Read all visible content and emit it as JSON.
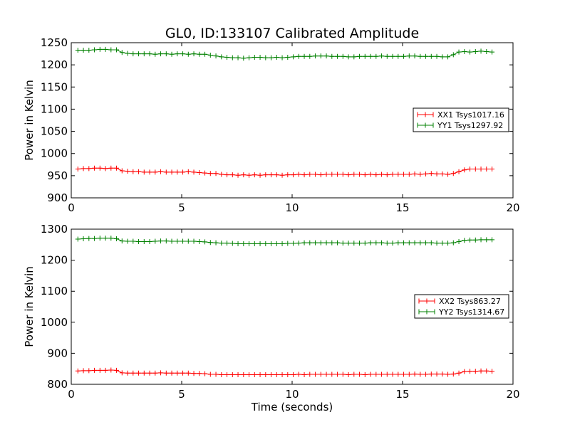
{
  "title": "GL0, ID:133107 Calibrated Amplitude",
  "colors": {
    "red": "#ff0000",
    "green": "#008000"
  },
  "chart_data": [
    {
      "type": "line",
      "title": "GL0, ID:133107 Calibrated Amplitude",
      "xlabel": "",
      "ylabel": "Power in Kelvin",
      "xlim": [
        0,
        20
      ],
      "ylim": [
        900,
        1250
      ],
      "xticks": [
        0,
        5,
        10,
        15,
        20
      ],
      "yticks": [
        900,
        950,
        1000,
        1050,
        1100,
        1150,
        1200,
        1250
      ],
      "grid": false,
      "legend_placement": "right",
      "x": [
        0.3,
        0.55,
        0.8,
        1.05,
        1.3,
        1.55,
        1.8,
        2.05,
        2.3,
        2.55,
        2.8,
        3.05,
        3.3,
        3.55,
        3.8,
        4.05,
        4.3,
        4.55,
        4.8,
        5.05,
        5.3,
        5.55,
        5.8,
        6.05,
        6.3,
        6.55,
        6.8,
        7.05,
        7.3,
        7.55,
        7.8,
        8.05,
        8.3,
        8.55,
        8.8,
        9.05,
        9.3,
        9.55,
        9.8,
        10.05,
        10.3,
        10.55,
        10.8,
        11.05,
        11.3,
        11.55,
        11.8,
        12.05,
        12.3,
        12.55,
        12.8,
        13.05,
        13.3,
        13.55,
        13.8,
        14.05,
        14.3,
        14.55,
        14.8,
        15.05,
        15.3,
        15.55,
        15.8,
        16.05,
        16.3,
        16.55,
        16.8,
        17.05,
        17.3,
        17.55,
        17.8,
        18.05,
        18.3,
        18.55,
        18.8,
        19.05
      ],
      "series": [
        {
          "name": "XX1 Tsys1017.16",
          "color": "#ff0000",
          "values": [
            965,
            966,
            966,
            967,
            967,
            966,
            967,
            967,
            961,
            960,
            959,
            959,
            958,
            958,
            958,
            959,
            958,
            958,
            958,
            958,
            959,
            958,
            957,
            956,
            955,
            955,
            953,
            952,
            952,
            951,
            952,
            951,
            952,
            951,
            952,
            952,
            952,
            951,
            952,
            952,
            953,
            952,
            953,
            953,
            952,
            953,
            953,
            953,
            953,
            952,
            953,
            953,
            952,
            953,
            952,
            953,
            952,
            953,
            953,
            953,
            953,
            954,
            953,
            954,
            955,
            954,
            954,
            953,
            955,
            959,
            963,
            965,
            965,
            965,
            965,
            965
          ]
        },
        {
          "name": "YY1 Tsys1297.92",
          "color": "#008000",
          "values": [
            1233,
            1233,
            1233,
            1234,
            1235,
            1235,
            1234,
            1234,
            1228,
            1226,
            1225,
            1225,
            1225,
            1225,
            1224,
            1225,
            1225,
            1224,
            1225,
            1225,
            1224,
            1225,
            1224,
            1224,
            1222,
            1220,
            1218,
            1217,
            1216,
            1216,
            1215,
            1216,
            1217,
            1217,
            1216,
            1216,
            1217,
            1216,
            1217,
            1218,
            1219,
            1219,
            1219,
            1220,
            1220,
            1220,
            1219,
            1219,
            1219,
            1218,
            1218,
            1219,
            1219,
            1219,
            1219,
            1220,
            1219,
            1219,
            1219,
            1219,
            1220,
            1220,
            1219,
            1219,
            1219,
            1219,
            1218,
            1218,
            1223,
            1229,
            1230,
            1229,
            1230,
            1231,
            1230,
            1229
          ]
        }
      ]
    },
    {
      "type": "line",
      "title": "",
      "xlabel": "Time (seconds)",
      "ylabel": "Power in Kelvin",
      "xlim": [
        0,
        20
      ],
      "ylim": [
        800,
        1300
      ],
      "xticks": [
        0,
        5,
        10,
        15,
        20
      ],
      "yticks": [
        800,
        900,
        1000,
        1100,
        1200,
        1300
      ],
      "grid": false,
      "legend_placement": "right",
      "x": [
        0.3,
        0.55,
        0.8,
        1.05,
        1.3,
        1.55,
        1.8,
        2.05,
        2.3,
        2.55,
        2.8,
        3.05,
        3.3,
        3.55,
        3.8,
        4.05,
        4.3,
        4.55,
        4.8,
        5.05,
        5.3,
        5.55,
        5.8,
        6.05,
        6.3,
        6.55,
        6.8,
        7.05,
        7.3,
        7.55,
        7.8,
        8.05,
        8.3,
        8.55,
        8.8,
        9.05,
        9.3,
        9.55,
        9.8,
        10.05,
        10.3,
        10.55,
        10.8,
        11.05,
        11.3,
        11.55,
        11.8,
        12.05,
        12.3,
        12.55,
        12.8,
        13.05,
        13.3,
        13.55,
        13.8,
        14.05,
        14.3,
        14.55,
        14.8,
        15.05,
        15.3,
        15.55,
        15.8,
        16.05,
        16.3,
        16.55,
        16.8,
        17.05,
        17.3,
        17.55,
        17.8,
        18.05,
        18.3,
        18.55,
        18.8,
        19.05
      ],
      "series": [
        {
          "name": "XX2 Tsys863.27",
          "color": "#ff0000",
          "values": [
            843,
            844,
            844,
            845,
            845,
            845,
            846,
            845,
            837,
            836,
            836,
            836,
            836,
            836,
            836,
            837,
            836,
            836,
            836,
            836,
            836,
            835,
            835,
            834,
            832,
            832,
            831,
            831,
            831,
            831,
            831,
            831,
            831,
            831,
            831,
            831,
            831,
            831,
            831,
            831,
            832,
            831,
            832,
            832,
            832,
            832,
            832,
            832,
            832,
            831,
            832,
            832,
            831,
            832,
            832,
            832,
            832,
            832,
            832,
            832,
            832,
            833,
            832,
            832,
            833,
            833,
            833,
            832,
            833,
            836,
            841,
            842,
            842,
            843,
            843,
            842
          ]
        },
        {
          "name": "YY2 Tsys1314.67",
          "color": "#008000",
          "values": [
            1268,
            1269,
            1270,
            1270,
            1271,
            1271,
            1271,
            1269,
            1262,
            1261,
            1261,
            1260,
            1260,
            1260,
            1261,
            1262,
            1262,
            1261,
            1261,
            1261,
            1261,
            1261,
            1260,
            1259,
            1257,
            1256,
            1255,
            1255,
            1254,
            1253,
            1253,
            1253,
            1253,
            1253,
            1253,
            1253,
            1253,
            1253,
            1254,
            1254,
            1255,
            1256,
            1256,
            1256,
            1256,
            1256,
            1256,
            1256,
            1255,
            1255,
            1255,
            1255,
            1255,
            1256,
            1256,
            1256,
            1255,
            1255,
            1256,
            1256,
            1256,
            1256,
            1256,
            1256,
            1256,
            1255,
            1255,
            1255,
            1256,
            1260,
            1264,
            1265,
            1265,
            1266,
            1266,
            1266
          ]
        }
      ]
    }
  ]
}
